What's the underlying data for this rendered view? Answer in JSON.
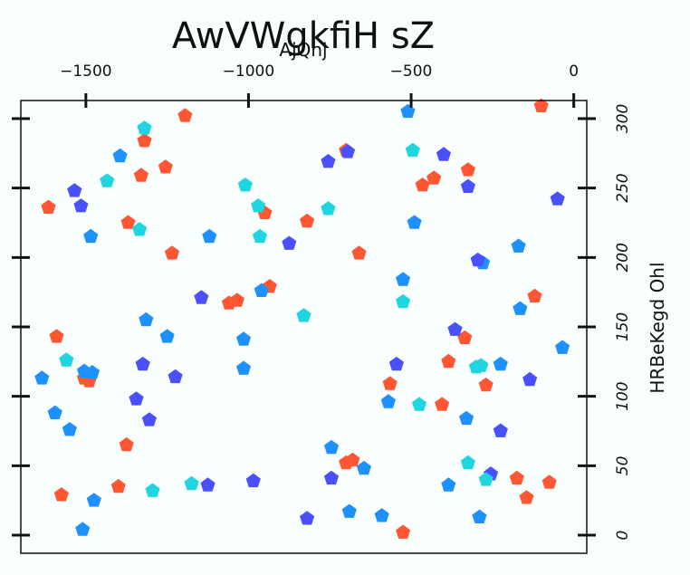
{
  "chart_data": {
    "type": "scatter",
    "title": "AwVWgkfiH sZ",
    "xlabel": "AjQhj",
    "ylabel": "HRBeKegd Ohl",
    "xlim": [
      -1700,
      40
    ],
    "ylim": [
      -13,
      313
    ],
    "x_ticks": [
      -1500,
      -1000,
      -500,
      0
    ],
    "x_tick_labels": [
      "−1500",
      "−1000",
      "−500",
      "0"
    ],
    "y_ticks": [
      0,
      50,
      100,
      150,
      200,
      250,
      300
    ],
    "y_tick_labels": [
      "0",
      "50",
      "100",
      "150",
      "200",
      "250",
      "300"
    ],
    "x_axis_position": "top",
    "y_axis_position": "right",
    "grid": false,
    "marker": "pentagon",
    "series": [
      {
        "color": "#ff5733",
        "points": [
          [
            -1615,
            236
          ],
          [
            -1590,
            143
          ],
          [
            -1575,
            29
          ],
          [
            -1505,
            113
          ],
          [
            -1490,
            111
          ],
          [
            -1400,
            35
          ],
          [
            -1375,
            65
          ],
          [
            -1370,
            225
          ],
          [
            -1330,
            259
          ],
          [
            -1320,
            284
          ],
          [
            -1255,
            265
          ],
          [
            -1235,
            203
          ],
          [
            -1195,
            302
          ],
          [
            -1060,
            167
          ],
          [
            -1035,
            169
          ],
          [
            -950,
            232
          ],
          [
            -935,
            179
          ],
          [
            -820,
            226
          ],
          [
            -700,
            277
          ],
          [
            -700,
            52
          ],
          [
            -680,
            54
          ],
          [
            -660,
            203
          ],
          [
            -565,
            109
          ],
          [
            -525,
            2
          ],
          [
            -465,
            252
          ],
          [
            -430,
            257
          ],
          [
            -405,
            94
          ],
          [
            -385,
            125
          ],
          [
            -335,
            142
          ],
          [
            -325,
            263
          ],
          [
            -270,
            108
          ],
          [
            -175,
            41
          ],
          [
            -145,
            27
          ],
          [
            -120,
            172
          ],
          [
            -75,
            38
          ],
          [
            -100,
            309
          ]
        ]
      },
      {
        "color": "#1e90ff",
        "points": [
          [
            -1635,
            113
          ],
          [
            -1595,
            88
          ],
          [
            -1550,
            76
          ],
          [
            -1510,
            4
          ],
          [
            -1505,
            118
          ],
          [
            -1485,
            215
          ],
          [
            -1480,
            117
          ],
          [
            -1475,
            25
          ],
          [
            -1395,
            273
          ],
          [
            -1315,
            155
          ],
          [
            -1250,
            143
          ],
          [
            -1120,
            215
          ],
          [
            -1015,
            141
          ],
          [
            -1015,
            120
          ],
          [
            -960,
            176
          ],
          [
            -745,
            63
          ],
          [
            -690,
            17
          ],
          [
            -645,
            48
          ],
          [
            -590,
            14
          ],
          [
            -570,
            96
          ],
          [
            -525,
            184
          ],
          [
            -510,
            305
          ],
          [
            -490,
            225
          ],
          [
            -385,
            36
          ],
          [
            -330,
            84
          ],
          [
            -290,
            13
          ],
          [
            -280,
            196
          ],
          [
            -225,
            123
          ],
          [
            -170,
            208
          ],
          [
            -165,
            163
          ],
          [
            -35,
            135
          ]
        ]
      },
      {
        "color": "#4b50ff",
        "points": [
          [
            -1535,
            248
          ],
          [
            -1515,
            237
          ],
          [
            -1345,
            98
          ],
          [
            -1325,
            123
          ],
          [
            -1305,
            83
          ],
          [
            -1225,
            114
          ],
          [
            -1145,
            171
          ],
          [
            -1125,
            36
          ],
          [
            -985,
            39
          ],
          [
            -875,
            210
          ],
          [
            -820,
            12
          ],
          [
            -755,
            269
          ],
          [
            -745,
            41
          ],
          [
            -695,
            276
          ],
          [
            -545,
            123
          ],
          [
            -400,
            274
          ],
          [
            -365,
            148
          ],
          [
            -325,
            251
          ],
          [
            -295,
            198
          ],
          [
            -255,
            44
          ],
          [
            -225,
            75
          ],
          [
            -135,
            112
          ],
          [
            -50,
            242
          ]
        ]
      },
      {
        "color": "#1ed5e0",
        "points": [
          [
            -1560,
            126
          ],
          [
            -1435,
            255
          ],
          [
            -1335,
            220
          ],
          [
            -1320,
            293
          ],
          [
            -1295,
            32
          ],
          [
            -1175,
            37
          ],
          [
            -1010,
            252
          ],
          [
            -970,
            237
          ],
          [
            -965,
            215
          ],
          [
            -830,
            158
          ],
          [
            -755,
            235
          ],
          [
            -525,
            168
          ],
          [
            -495,
            277
          ],
          [
            -475,
            94
          ],
          [
            -325,
            52
          ],
          [
            -300,
            121
          ],
          [
            -285,
            122
          ],
          [
            -270,
            40
          ]
        ]
      }
    ]
  }
}
